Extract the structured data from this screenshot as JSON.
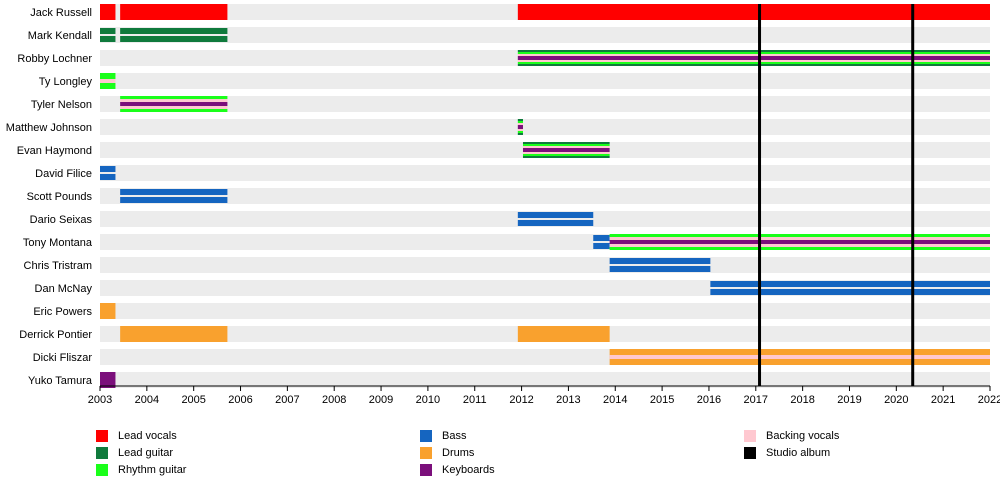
{
  "chart_data": {
    "type": "timeline",
    "x_range": [
      2003,
      2022
    ],
    "x_ticks": [
      "2003",
      "2004",
      "2005",
      "2006",
      "2007",
      "2008",
      "2009",
      "2010",
      "2011",
      "2012",
      "2013",
      "2014",
      "2015",
      "2016",
      "2017",
      "2018",
      "2019",
      "2020",
      "2021",
      "2022"
    ],
    "roles": {
      "lead_vocals": {
        "label": "Lead vocals",
        "color": "#ff0000"
      },
      "lead_guitar": {
        "label": "Lead guitar",
        "color": "#0f7a3c"
      },
      "rhythm_guitar": {
        "label": "Rhythm guitar",
        "color": "#1aff1a"
      },
      "bass": {
        "label": "Bass",
        "color": "#1565c0"
      },
      "drums": {
        "label": "Drums",
        "color": "#f9a12e"
      },
      "keyboards": {
        "label": "Keyboards",
        "color": "#7b0f7b"
      },
      "backing_vocals": {
        "label": "Backing vocals",
        "color": "#ffc8d0"
      },
      "studio_album": {
        "label": "Studio album",
        "color": "#000000"
      }
    },
    "members": [
      {
        "name": "Jack Russell",
        "periods": [
          {
            "start": 2003.0,
            "end": 2003.33,
            "roles": [
              "lead_vocals"
            ]
          },
          {
            "start": 2003.43,
            "end": 2005.72,
            "roles": [
              "lead_vocals"
            ]
          },
          {
            "start": 2011.92,
            "end": 2022.0,
            "roles": [
              "lead_vocals"
            ]
          }
        ]
      },
      {
        "name": "Mark Kendall",
        "periods": [
          {
            "start": 2003.0,
            "end": 2003.33,
            "roles": [
              "lead_guitar"
            ],
            "style": "split"
          },
          {
            "start": 2003.43,
            "end": 2005.72,
            "roles": [
              "lead_guitar"
            ],
            "style": "split"
          }
        ]
      },
      {
        "name": "Robby Lochner",
        "periods": [
          {
            "start": 2011.92,
            "end": 2022.0,
            "roles": [
              "lead_guitar",
              "rhythm_guitar",
              "backing_vocals",
              "keyboards"
            ],
            "style": "stripes"
          }
        ]
      },
      {
        "name": "Ty Longley",
        "periods": [
          {
            "start": 2003.0,
            "end": 2003.33,
            "roles": [
              "rhythm_guitar",
              "backing_vocals"
            ],
            "style": "stripes"
          }
        ]
      },
      {
        "name": "Tyler Nelson",
        "periods": [
          {
            "start": 2003.43,
            "end": 2005.72,
            "roles": [
              "rhythm_guitar",
              "backing_vocals",
              "keyboards"
            ],
            "style": "stripes"
          }
        ]
      },
      {
        "name": "Matthew Johnson",
        "periods": [
          {
            "start": 2011.92,
            "end": 2012.03,
            "roles": [
              "lead_guitar",
              "rhythm_guitar",
              "backing_vocals",
              "keyboards"
            ],
            "style": "stripes"
          }
        ]
      },
      {
        "name": "Evan Haymond",
        "periods": [
          {
            "start": 2012.03,
            "end": 2013.88,
            "roles": [
              "lead_guitar",
              "rhythm_guitar",
              "backing_vocals",
              "keyboards"
            ],
            "style": "stripes"
          }
        ]
      },
      {
        "name": "David Filice",
        "periods": [
          {
            "start": 2003.0,
            "end": 2003.33,
            "roles": [
              "bass"
            ],
            "style": "split"
          }
        ]
      },
      {
        "name": "Scott Pounds",
        "periods": [
          {
            "start": 2003.43,
            "end": 2005.72,
            "roles": [
              "bass"
            ],
            "style": "split"
          }
        ]
      },
      {
        "name": "Dario Seixas",
        "periods": [
          {
            "start": 2011.92,
            "end": 2013.53,
            "roles": [
              "bass"
            ],
            "style": "split"
          }
        ]
      },
      {
        "name": "Tony Montana",
        "periods": [
          {
            "start": 2013.53,
            "end": 2013.88,
            "roles": [
              "bass"
            ],
            "style": "split"
          },
          {
            "start": 2013.88,
            "end": 2022.0,
            "roles": [
              "rhythm_guitar",
              "backing_vocals",
              "keyboards"
            ],
            "style": "stripes"
          }
        ]
      },
      {
        "name": "Chris Tristram",
        "periods": [
          {
            "start": 2013.88,
            "end": 2016.03,
            "roles": [
              "bass"
            ],
            "style": "split"
          }
        ]
      },
      {
        "name": "Dan McNay",
        "periods": [
          {
            "start": 2016.03,
            "end": 2022.0,
            "roles": [
              "bass"
            ],
            "style": "split"
          }
        ]
      },
      {
        "name": "Eric Powers",
        "periods": [
          {
            "start": 2003.0,
            "end": 2003.33,
            "roles": [
              "drums"
            ]
          }
        ]
      },
      {
        "name": "Derrick Pontier",
        "periods": [
          {
            "start": 2003.43,
            "end": 2005.72,
            "roles": [
              "drums"
            ]
          },
          {
            "start": 2011.92,
            "end": 2013.88,
            "roles": [
              "drums"
            ]
          }
        ]
      },
      {
        "name": "Dicki Fliszar",
        "periods": [
          {
            "start": 2013.88,
            "end": 2022.0,
            "roles": [
              "drums",
              "backing_vocals"
            ],
            "style": "backing"
          }
        ]
      },
      {
        "name": "Yuko Tamura",
        "periods": [
          {
            "start": 2003.0,
            "end": 2003.33,
            "roles": [
              "keyboards"
            ]
          }
        ]
      }
    ],
    "studio_albums": [
      2017.08,
      2020.35
    ],
    "legend_columns": [
      [
        "lead_vocals",
        "lead_guitar",
        "rhythm_guitar"
      ],
      [
        "bass",
        "drums",
        "keyboards"
      ],
      [
        "backing_vocals",
        "studio_album"
      ]
    ]
  }
}
